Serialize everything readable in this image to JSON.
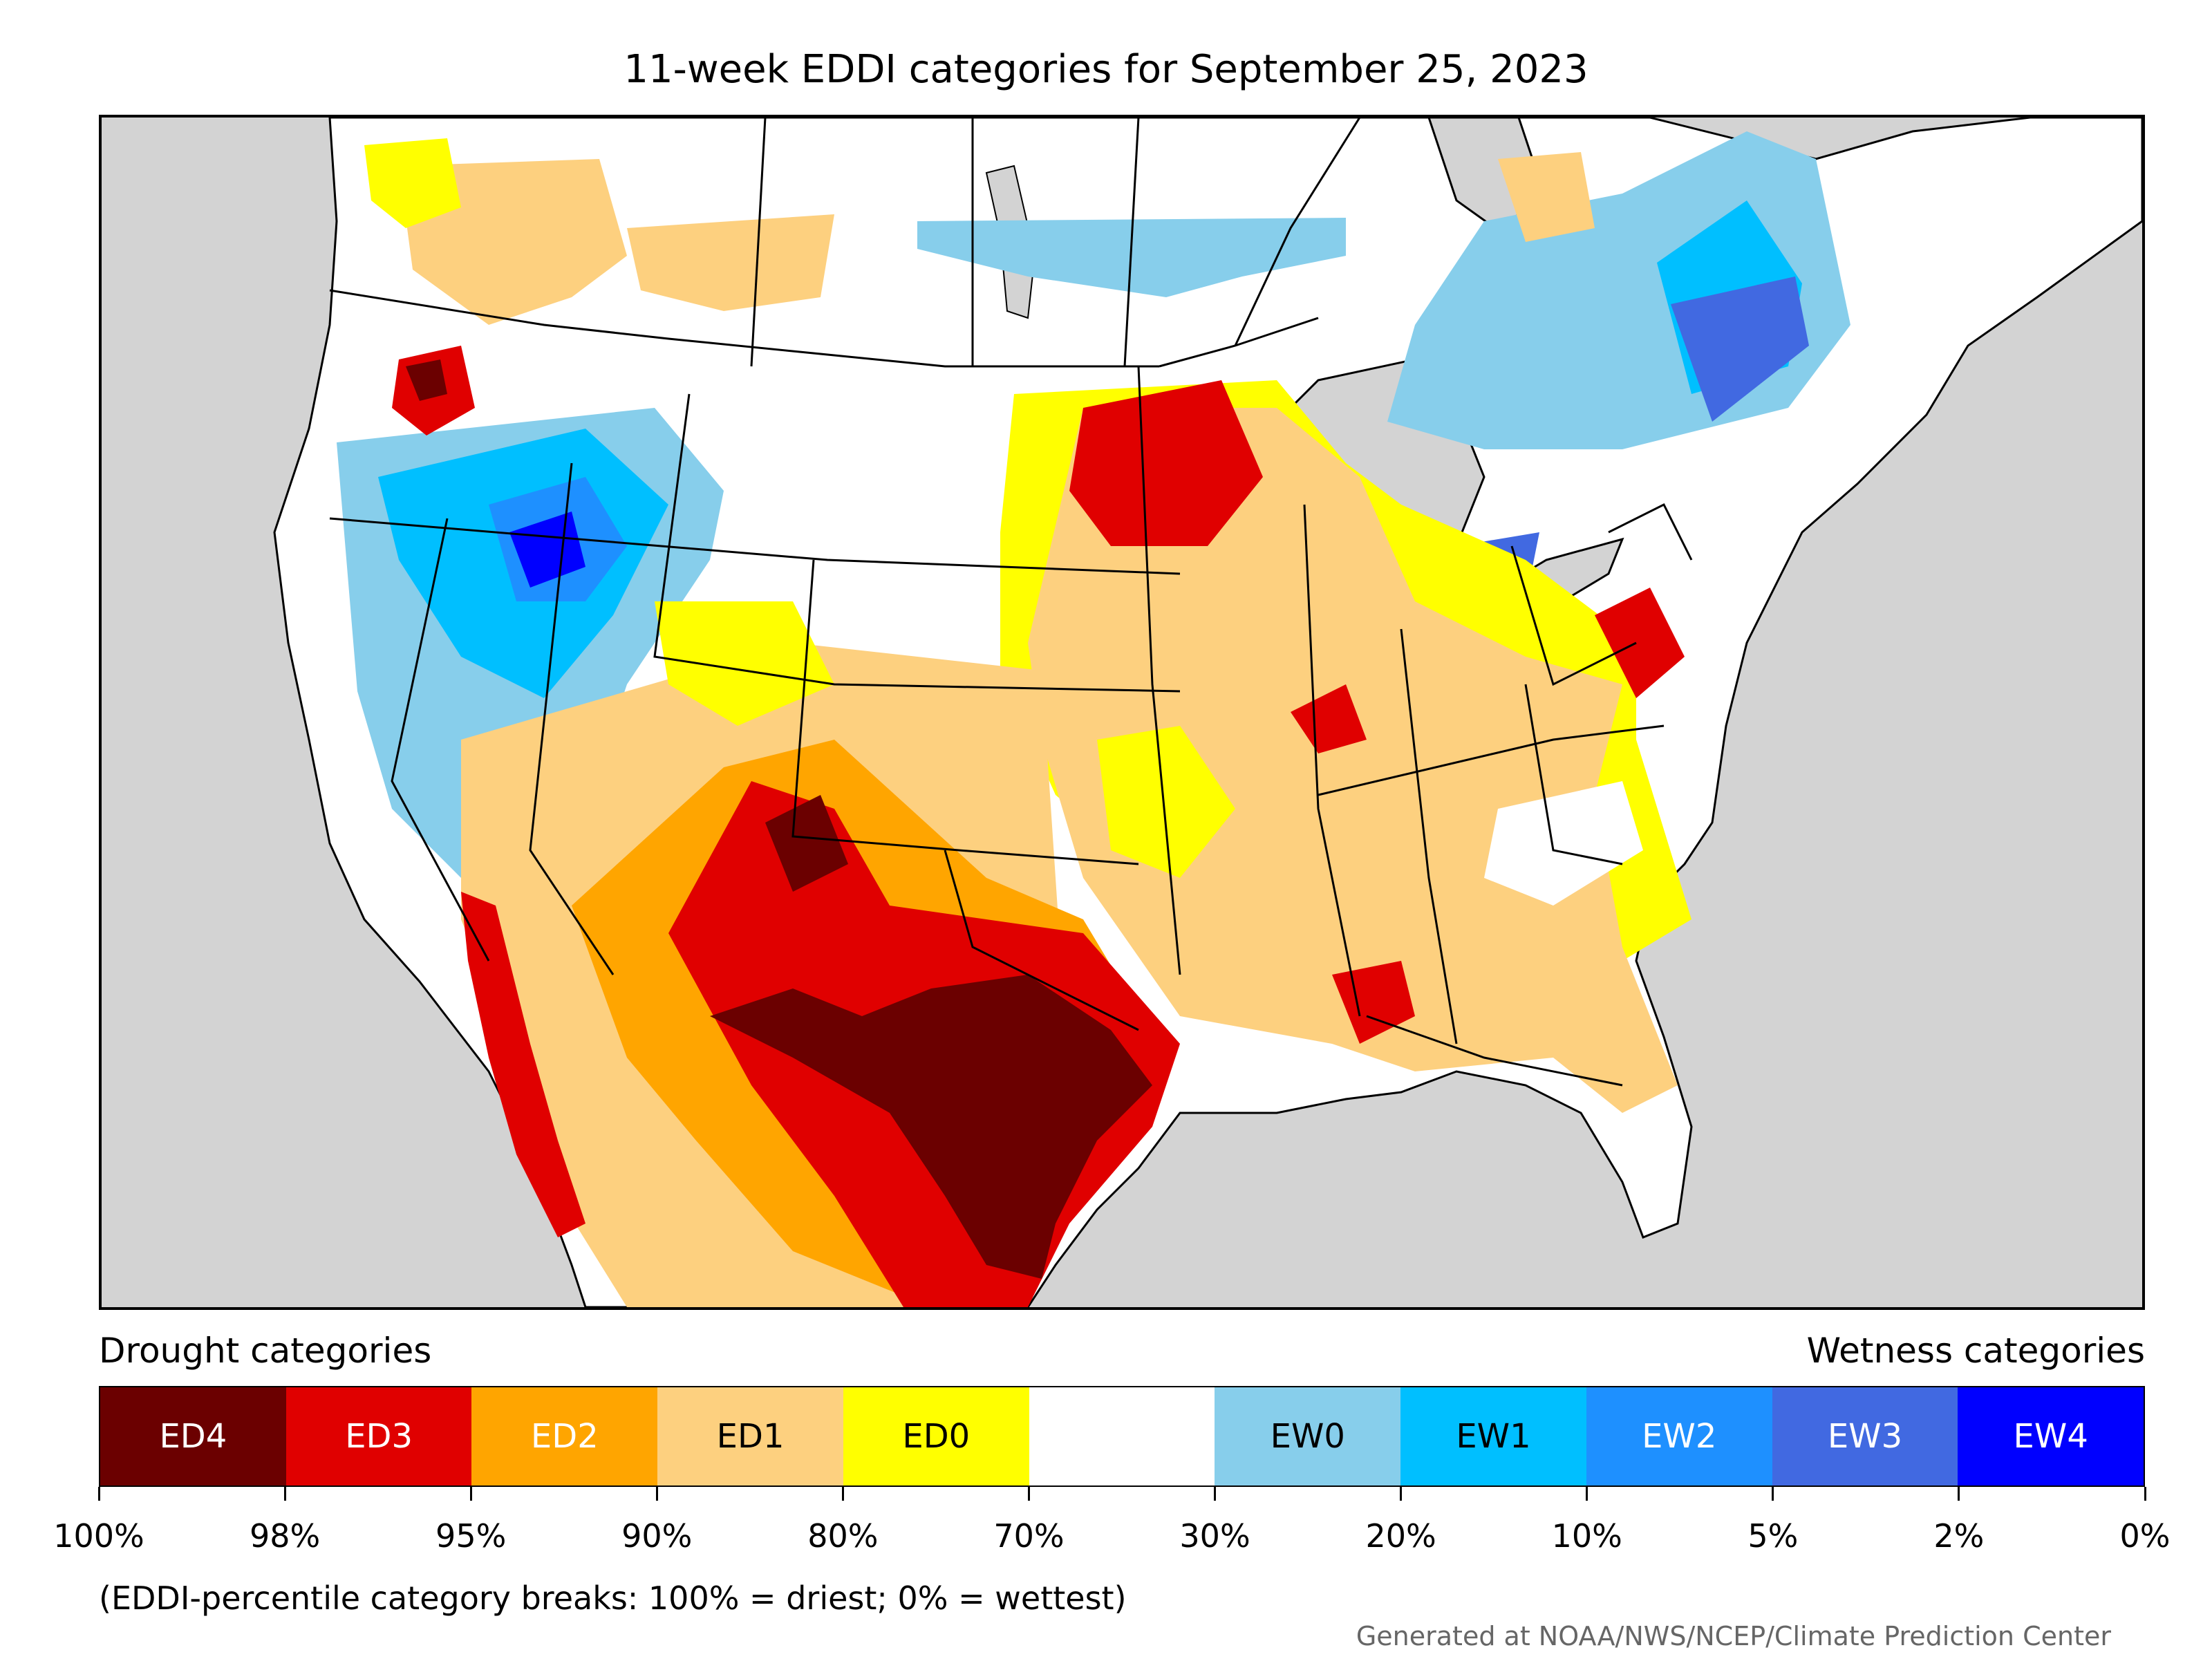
{
  "title": "11-week EDDI categories for September 25, 2023",
  "legend": {
    "drought_heading": "Drought categories",
    "wetness_heading": "Wetness categories",
    "categories": [
      {
        "label": "ED4",
        "color": "#6b0000",
        "text_color": "#ffffff"
      },
      {
        "label": "ED3",
        "color": "#e00000",
        "text_color": "#ffffff"
      },
      {
        "label": "ED2",
        "color": "#ffa500",
        "text_color": "#ffffff"
      },
      {
        "label": "ED1",
        "color": "#fdd07f",
        "text_color": "#000000"
      },
      {
        "label": "ED0",
        "color": "#ffff00",
        "text_color": "#000000"
      },
      {
        "label": "",
        "color": "#ffffff",
        "text_color": "#000000"
      },
      {
        "label": "EW0",
        "color": "#87ceeb",
        "text_color": "#000000"
      },
      {
        "label": "EW1",
        "color": "#00bfff",
        "text_color": "#000000"
      },
      {
        "label": "EW2",
        "color": "#1e90ff",
        "text_color": "#ffffff"
      },
      {
        "label": "EW3",
        "color": "#4169e1",
        "text_color": "#ffffff"
      },
      {
        "label": "EW4",
        "color": "#0000ff",
        "text_color": "#ffffff"
      }
    ],
    "tick_labels": [
      "100%",
      "98%",
      "95%",
      "90%",
      "80%",
      "70%",
      "30%",
      "20%",
      "10%",
      "5%",
      "2%",
      "0%"
    ]
  },
  "footnote": "(EDDI-percentile category breaks: 100% = driest; 0% = wettest)",
  "credit": "Generated at NOAA/NWS/NCEP/Climate Prediction Center",
  "map_colors": {
    "land": "#ffffff",
    "water": "#d3d3d3",
    "border": "#000000"
  }
}
